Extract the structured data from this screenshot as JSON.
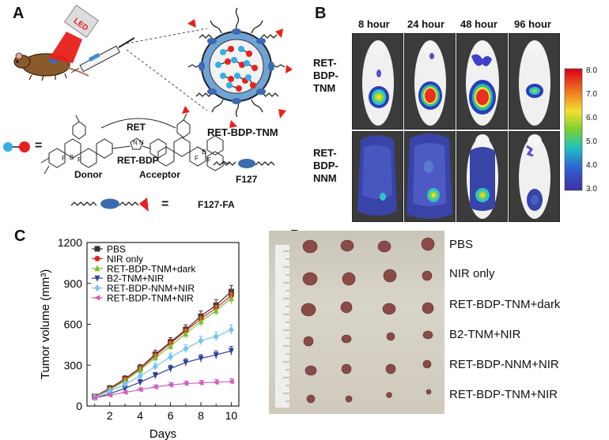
{
  "panels": {
    "a": {
      "letter": "A",
      "led_label": "LED",
      "rb_tnm": "RET-BDP-TNM",
      "ret": "RET",
      "rb_mid": "RET-BDP",
      "donor": "Donor",
      "acceptor": "Acceptor",
      "equals1": "=",
      "f127": "F127",
      "equals2": "=",
      "f127fa": "F127-FA",
      "f_atoms": [
        "F",
        "F",
        "F",
        "F"
      ],
      "b_atoms": [
        "B",
        "B"
      ],
      "n_atoms": [
        "N",
        "N"
      ]
    },
    "b": {
      "letter": "B",
      "time_labels": [
        "8 hour",
        "24 hour",
        "48 hour",
        "96 hour"
      ],
      "rows": [
        {
          "label_lines": [
            "RET-",
            "BDP-",
            "TNM"
          ]
        },
        {
          "label_lines": [
            "RET-",
            "BDP-",
            "NNM"
          ]
        }
      ],
      "colorbar_ticks": [
        "8.0",
        "7.0",
        "6.0",
        "5.0",
        "4.0",
        "3.0"
      ]
    },
    "c": {
      "letter": "C"
    },
    "d": {
      "letter": "D",
      "rows": [
        "PBS",
        "NIR only",
        "RET-BDP-TNM+dark",
        "B2-TNM+NIR",
        "RET-BDP-NNM+NIR",
        "RET-BDP-TNM+NIR"
      ]
    }
  },
  "chart_data": {
    "type": "line",
    "title": "",
    "xlabel": "Days",
    "ylabel": "Tumor volume (mm³)",
    "xlim": [
      0.5,
      10.5
    ],
    "ylim": [
      0,
      1200
    ],
    "xticks": [
      2,
      4,
      6,
      8,
      10
    ],
    "yticks": [
      0,
      300,
      600,
      900,
      1200
    ],
    "legend_position": "top-left",
    "x": [
      1,
      2,
      3,
      4,
      5,
      6,
      7,
      8,
      9,
      10
    ],
    "series": [
      {
        "name": "PBS",
        "color": "#333333",
        "marker": "square",
        "values": [
          70,
          130,
          200,
          280,
          380,
          470,
          560,
          660,
          740,
          840
        ],
        "error": [
          15,
          20,
          22,
          25,
          30,
          32,
          35,
          38,
          40,
          45
        ]
      },
      {
        "name": "NIR only",
        "color": "#d62728",
        "marker": "circle",
        "values": [
          70,
          125,
          195,
          275,
          370,
          460,
          550,
          640,
          720,
          810
        ],
        "error": [
          15,
          18,
          20,
          25,
          28,
          30,
          32,
          35,
          38,
          40
        ]
      },
      {
        "name": "RET-BDP-TNM+dark",
        "color": "#7bbf2a",
        "marker": "triangle-up",
        "values": [
          65,
          120,
          185,
          265,
          355,
          440,
          530,
          620,
          700,
          790
        ],
        "error": [
          15,
          18,
          20,
          24,
          27,
          30,
          32,
          35,
          37,
          40
        ]
      },
      {
        "name": "B2-TNM+NIR",
        "color": "#2f3f99",
        "marker": "triangle-down",
        "values": [
          60,
          90,
          130,
          175,
          225,
          275,
          320,
          350,
          375,
          405
        ],
        "error": [
          12,
          15,
          18,
          20,
          22,
          25,
          27,
          28,
          30,
          32
        ]
      },
      {
        "name": "RET-BDP-NNM+NIR",
        "color": "#74c5f0",
        "marker": "diamond",
        "values": [
          65,
          110,
          160,
          220,
          290,
          360,
          420,
          480,
          510,
          560
        ],
        "error": [
          12,
          16,
          18,
          22,
          25,
          28,
          30,
          32,
          34,
          36
        ]
      },
      {
        "name": "RET-BDP-TNM+NIR",
        "color": "#d060c0",
        "marker": "triangle-left",
        "values": [
          60,
          80,
          100,
          120,
          140,
          155,
          165,
          170,
          175,
          180
        ],
        "error": [
          10,
          12,
          14,
          15,
          16,
          17,
          18,
          19,
          20,
          20
        ]
      }
    ]
  }
}
